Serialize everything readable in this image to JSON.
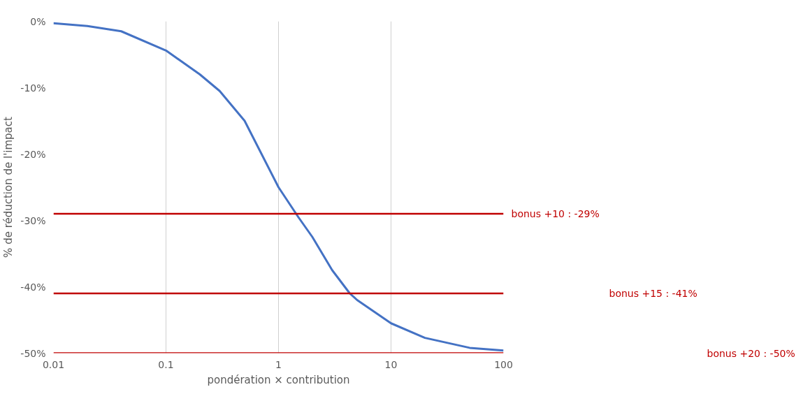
{
  "chart_data": {
    "type": "line",
    "xlabel": "pondération × contribution",
    "ylabel": "% de réduction de l'impact",
    "log": "x",
    "x": [
      0.01,
      0.02,
      0.04,
      0.1,
      0.2,
      0.3,
      0.5,
      1,
      1.5,
      2,
      3,
      4.3,
      5,
      10,
      20,
      50,
      100
    ],
    "series": [
      {
        "color": "#4472c4",
        "values": [
          -0.3,
          -0.7,
          -1.5,
          -4.4,
          -8,
          -10.5,
          -15,
          -25,
          -29.5,
          -32.5,
          -37.5,
          -41,
          -42,
          -45.5,
          -47.7,
          -49.2,
          -49.6
        ]
      }
    ],
    "xlim": [
      0.01,
      100
    ],
    "xticks": [
      0.01,
      0.1,
      1,
      10,
      100
    ],
    "ylim": [
      -50,
      0
    ],
    "yticks": [
      {
        "value": -50,
        "label": "-50%"
      },
      {
        "value": -40,
        "label": "-40%"
      },
      {
        "value": -30,
        "label": "-30%"
      },
      {
        "value": -20,
        "label": "-20%"
      },
      {
        "value": -10,
        "label": "-10%"
      },
      {
        "value": 0,
        "label": "0%"
      }
    ],
    "grid": "x",
    "marker": "none",
    "line_style": "solid",
    "ref_lines": [
      {
        "axis": "y",
        "value": -29,
        "label": "bonus +10 : -29%",
        "color": "#c00000"
      },
      {
        "axis": "y",
        "value": -41,
        "label": "bonus +15 : -41%",
        "color": "#c00000"
      },
      {
        "axis": "y",
        "value": -50,
        "label": "bonus +20 : -50%",
        "color": "#c00000"
      }
    ]
  }
}
